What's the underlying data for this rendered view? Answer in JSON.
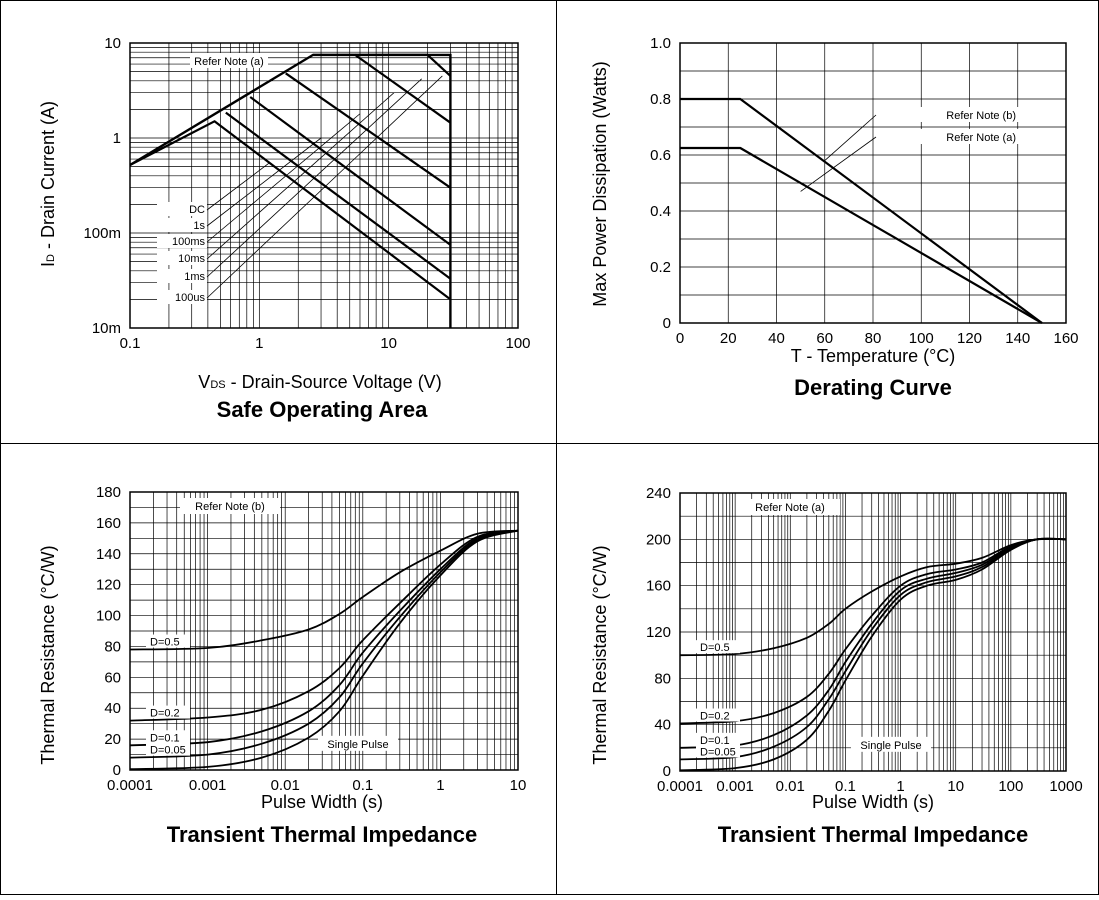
{
  "chart_data": [
    {
      "id": "soa",
      "type": "line",
      "title": "Safe Operating Area",
      "xlabel": "VDS - Drain-Source Voltage (V)",
      "xlabel_prefix": "V",
      "xlabel_sub": "DS",
      "xlabel_rest": " - Drain-Source Voltage (V)",
      "ylabel": "ID - Drain Current (A)",
      "ylabel_prefix": "I",
      "ylabel_sub": "D",
      "ylabel_rest": " - Drain Current (A)",
      "x_scale": "log",
      "y_scale": "log",
      "xlim": [
        0.1,
        100
      ],
      "ylim": [
        0.01,
        10
      ],
      "x_ticks": [
        {
          "v": 0.1,
          "label": "0.1"
        },
        {
          "v": 1,
          "label": "1"
        },
        {
          "v": 10,
          "label": "10"
        },
        {
          "v": 100,
          "label": "100"
        }
      ],
      "y_ticks": [
        {
          "v": 0.01,
          "label": "10m"
        },
        {
          "v": 0.1,
          "label": "100m"
        },
        {
          "v": 1,
          "label": "1"
        },
        {
          "v": 10,
          "label": "10"
        }
      ],
      "grid": true,
      "note_label": "Refer Note (a)",
      "legend_labels": [
        "DC",
        "1s",
        "100ms",
        "10ms",
        "1ms",
        "100us"
      ],
      "series": [
        {
          "name": "DC",
          "points": [
            [
              0.1,
              0.52
            ],
            [
              0.45,
              1.5
            ],
            [
              30,
              0.02
            ]
          ]
        },
        {
          "name": "1s",
          "points": [
            [
              0.55,
              1.85
            ],
            [
              30,
              0.033
            ]
          ]
        },
        {
          "name": "100ms",
          "points": [
            [
              0.85,
              2.7
            ],
            [
              30,
              0.075
            ]
          ]
        },
        {
          "name": "10ms",
          "points": [
            [
              1.6,
              4.8
            ],
            [
              30,
              0.3
            ]
          ]
        },
        {
          "name": "1ms",
          "points": [
            [
              2.6,
              7.5
            ],
            [
              5.5,
              7.5
            ],
            [
              30,
              1.45
            ]
          ]
        },
        {
          "name": "100us",
          "points": [
            [
              5.5,
              7.5
            ],
            [
              20,
              7.5
            ],
            [
              30,
              4.5
            ]
          ]
        }
      ],
      "envelope": [
        [
          0.1,
          0.52
        ],
        [
          2.6,
          7.5
        ],
        [
          30,
          7.5
        ],
        [
          30,
          0.01
        ]
      ]
    },
    {
      "id": "derating",
      "type": "line",
      "title": "Derating Curve",
      "xlabel": "T - Temperature (°C)",
      "ylabel": "Max Power Dissipation (Watts)",
      "x_scale": "linear",
      "y_scale": "linear",
      "xlim": [
        0,
        160
      ],
      "ylim": [
        0,
        1.0
      ],
      "x_ticks": [
        {
          "v": 0,
          "label": "0"
        },
        {
          "v": 20,
          "label": "20"
        },
        {
          "v": 40,
          "label": "40"
        },
        {
          "v": 60,
          "label": "60"
        },
        {
          "v": 80,
          "label": "80"
        },
        {
          "v": 100,
          "label": "100"
        },
        {
          "v": 120,
          "label": "120"
        },
        {
          "v": 140,
          "label": "140"
        },
        {
          "v": 160,
          "label": "160"
        }
      ],
      "y_ticks": [
        {
          "v": 0,
          "label": "0"
        },
        {
          "v": 0.2,
          "label": "0.2"
        },
        {
          "v": 0.4,
          "label": "0.4"
        },
        {
          "v": 0.6,
          "label": "0.6"
        },
        {
          "v": 0.8,
          "label": "0.8"
        },
        {
          "v": 1.0,
          "label": "1.0"
        }
      ],
      "grid": true,
      "series": [
        {
          "name": "Refer Note (b)",
          "points": [
            [
              0,
              0.8
            ],
            [
              25,
              0.8
            ],
            [
              150,
              0
            ]
          ]
        },
        {
          "name": "Refer Note (a)",
          "points": [
            [
              0,
              0.625
            ],
            [
              25,
              0.625
            ],
            [
              150,
              0
            ]
          ]
        }
      ]
    },
    {
      "id": "thermal_b",
      "type": "line",
      "title": "Transient Thermal Impedance",
      "xlabel": "Pulse Width (s)",
      "ylabel": "Thermal Resistance (°C/W)",
      "x_scale": "log",
      "y_scale": "linear",
      "xlim": [
        0.0001,
        10
      ],
      "ylim": [
        0,
        180
      ],
      "x_ticks": [
        {
          "v": 0.0001,
          "label": "0.0001"
        },
        {
          "v": 0.001,
          "label": "0.001"
        },
        {
          "v": 0.01,
          "label": "0.01"
        },
        {
          "v": 0.1,
          "label": "0.1"
        },
        {
          "v": 1,
          "label": "1"
        },
        {
          "v": 10,
          "label": "10"
        }
      ],
      "y_ticks": [
        {
          "v": 0,
          "label": "0"
        },
        {
          "v": 20,
          "label": "20"
        },
        {
          "v": 40,
          "label": "40"
        },
        {
          "v": 60,
          "label": "60"
        },
        {
          "v": 80,
          "label": "80"
        },
        {
          "v": 100,
          "label": "100"
        },
        {
          "v": 120,
          "label": "120"
        },
        {
          "v": 140,
          "label": "140"
        },
        {
          "v": 160,
          "label": "160"
        },
        {
          "v": 180,
          "label": "180"
        }
      ],
      "grid": true,
      "note_label": "Refer Note (b)",
      "series": [
        {
          "name": "D=0.5",
          "points": [
            [
              0.0001,
              78
            ],
            [
              0.001,
              79
            ],
            [
              0.005,
              84
            ],
            [
              0.02,
              91
            ],
            [
              0.05,
              101
            ],
            [
              0.1,
              112
            ],
            [
              0.3,
              128
            ],
            [
              1,
              142
            ],
            [
              3,
              153
            ],
            [
              10,
              155
            ]
          ]
        },
        {
          "name": "D=0.2",
          "points": [
            [
              0.0001,
              32
            ],
            [
              0.001,
              34
            ],
            [
              0.005,
              39
            ],
            [
              0.02,
              51
            ],
            [
              0.05,
              66
            ],
            [
              0.1,
              84
            ],
            [
              0.3,
              108
            ],
            [
              1,
              133
            ],
            [
              3,
              151
            ],
            [
              10,
              155
            ]
          ]
        },
        {
          "name": "D=0.1",
          "points": [
            [
              0.0001,
              16
            ],
            [
              0.001,
              18
            ],
            [
              0.005,
              25
            ],
            [
              0.02,
              38
            ],
            [
              0.05,
              55
            ],
            [
              0.1,
              76
            ],
            [
              0.3,
              103
            ],
            [
              1,
              130
            ],
            [
              3,
              150
            ],
            [
              10,
              155
            ]
          ]
        },
        {
          "name": "D=0.05",
          "points": [
            [
              0.0001,
              8
            ],
            [
              0.001,
              10
            ],
            [
              0.005,
              17
            ],
            [
              0.02,
              30
            ],
            [
              0.05,
              47
            ],
            [
              0.1,
              69
            ],
            [
              0.3,
              99
            ],
            [
              1,
              128
            ],
            [
              3,
              149
            ],
            [
              10,
              155
            ]
          ]
        },
        {
          "name": "Single Pulse",
          "points": [
            [
              0.0001,
              0.5
            ],
            [
              0.001,
              2
            ],
            [
              0.005,
              8
            ],
            [
              0.02,
              21
            ],
            [
              0.05,
              38
            ],
            [
              0.1,
              61
            ],
            [
              0.3,
              95
            ],
            [
              1,
              126
            ],
            [
              3,
              148
            ],
            [
              10,
              155
            ]
          ]
        }
      ]
    },
    {
      "id": "thermal_a",
      "type": "line",
      "title": "Transient Thermal Impedance",
      "xlabel": "Pulse Width (s)",
      "ylabel": "Thermal Resistance (°C/W)",
      "x_scale": "log",
      "y_scale": "linear",
      "xlim": [
        0.0001,
        1000
      ],
      "ylim": [
        0,
        240
      ],
      "x_ticks": [
        {
          "v": 0.0001,
          "label": "0.0001"
        },
        {
          "v": 0.001,
          "label": "0.001"
        },
        {
          "v": 0.01,
          "label": "0.01"
        },
        {
          "v": 0.1,
          "label": "0.1"
        },
        {
          "v": 1,
          "label": "1"
        },
        {
          "v": 10,
          "label": "10"
        },
        {
          "v": 100,
          "label": "100"
        },
        {
          "v": 1000,
          "label": "1000"
        }
      ],
      "y_ticks": [
        {
          "v": 0,
          "label": "0"
        },
        {
          "v": 40,
          "label": "40"
        },
        {
          "v": 80,
          "label": "80"
        },
        {
          "v": 120,
          "label": "120"
        },
        {
          "v": 160,
          "label": "160"
        },
        {
          "v": 200,
          "label": "200"
        },
        {
          "v": 240,
          "label": "240"
        }
      ],
      "grid": true,
      "note_label": "Refer Note (a)",
      "series": [
        {
          "name": "D=0.5",
          "points": [
            [
              0.0001,
              100
            ],
            [
              0.001,
              101
            ],
            [
              0.005,
              106
            ],
            [
              0.02,
              115
            ],
            [
              0.05,
              127
            ],
            [
              0.1,
              140
            ],
            [
              0.3,
              155
            ],
            [
              1,
              168
            ],
            [
              3,
              176
            ],
            [
              10,
              179
            ],
            [
              30,
              184
            ],
            [
              100,
              195
            ],
            [
              300,
              200
            ],
            [
              1000,
              200
            ]
          ]
        },
        {
          "name": "D=0.2",
          "points": [
            [
              0.0001,
              41
            ],
            [
              0.001,
              43
            ],
            [
              0.005,
              50
            ],
            [
              0.02,
              64
            ],
            [
              0.05,
              84
            ],
            [
              0.1,
              105
            ],
            [
              0.3,
              134
            ],
            [
              1,
              160
            ],
            [
              3,
              170
            ],
            [
              10,
              174
            ],
            [
              30,
              180
            ],
            [
              100,
              194
            ],
            [
              300,
              200
            ],
            [
              1000,
              200
            ]
          ]
        },
        {
          "name": "D=0.1",
          "points": [
            [
              0.0001,
              20
            ],
            [
              0.001,
              22
            ],
            [
              0.005,
              31
            ],
            [
              0.02,
              48
            ],
            [
              0.05,
              70
            ],
            [
              0.1,
              94
            ],
            [
              0.3,
              127
            ],
            [
              1,
              156
            ],
            [
              3,
              166
            ],
            [
              10,
              171
            ],
            [
              30,
              178
            ],
            [
              100,
              193
            ],
            [
              300,
              200
            ],
            [
              1000,
              200
            ]
          ]
        },
        {
          "name": "D=0.05",
          "points": [
            [
              0.0001,
              10
            ],
            [
              0.001,
              12
            ],
            [
              0.005,
              21
            ],
            [
              0.02,
              38
            ],
            [
              0.05,
              62
            ],
            [
              0.1,
              86
            ],
            [
              0.3,
              122
            ],
            [
              1,
              152
            ],
            [
              3,
              163
            ],
            [
              10,
              168
            ],
            [
              30,
              176
            ],
            [
              100,
              192
            ],
            [
              300,
              200
            ],
            [
              1000,
              200
            ]
          ]
        },
        {
          "name": "Single Pulse",
          "points": [
            [
              0.0001,
              0.6
            ],
            [
              0.001,
              2.5
            ],
            [
              0.005,
              10
            ],
            [
              0.02,
              27
            ],
            [
              0.05,
              52
            ],
            [
              0.1,
              78
            ],
            [
              0.3,
              116
            ],
            [
              1,
              148
            ],
            [
              3,
              160
            ],
            [
              10,
              165
            ],
            [
              30,
              174
            ],
            [
              100,
              191
            ],
            [
              300,
              200
            ],
            [
              1000,
              200
            ]
          ]
        }
      ]
    }
  ]
}
